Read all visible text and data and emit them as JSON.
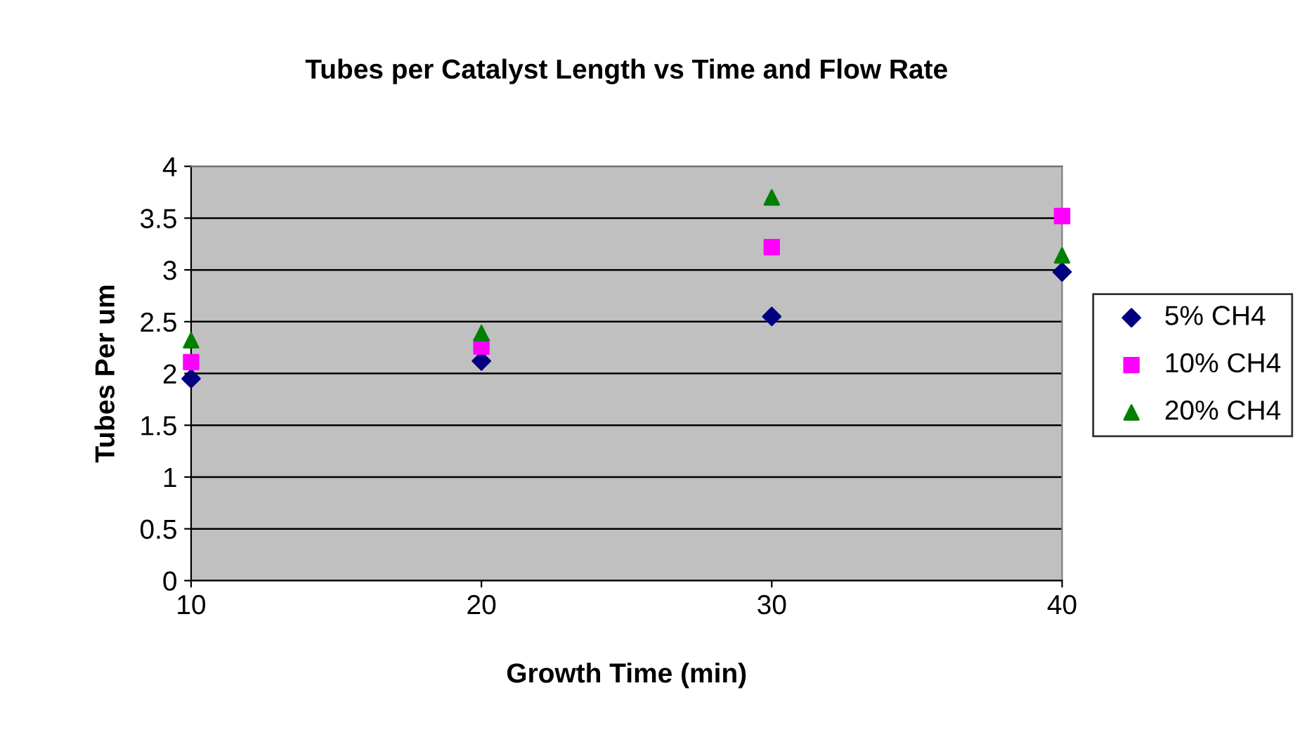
{
  "chart_data": {
    "type": "scatter",
    "title": "Tubes per Catalyst Length vs Time and Flow Rate",
    "xlabel": "Growth Time (min)",
    "ylabel": "Tubes Per um",
    "x": [
      10,
      20,
      30,
      40
    ],
    "series": [
      {
        "name": "5% CH4",
        "color": "#000080",
        "marker": "diamond",
        "values": [
          1.95,
          2.12,
          2.55,
          2.98
        ]
      },
      {
        "name": "10% CH4",
        "color": "#ff00ff",
        "marker": "square",
        "values": [
          2.11,
          2.26,
          3.22,
          3.52
        ]
      },
      {
        "name": "20% CH4",
        "color": "#008000",
        "marker": "triangle",
        "values": [
          2.32,
          2.39,
          3.7,
          3.14
        ]
      }
    ],
    "xlim": [
      10,
      40
    ],
    "xticks": [
      10,
      20,
      30,
      40
    ],
    "ylim": [
      0,
      4
    ],
    "yticks": [
      0,
      0.5,
      1,
      1.5,
      2,
      2.5,
      3,
      3.5,
      4
    ],
    "grid": "y",
    "legend": "right"
  }
}
